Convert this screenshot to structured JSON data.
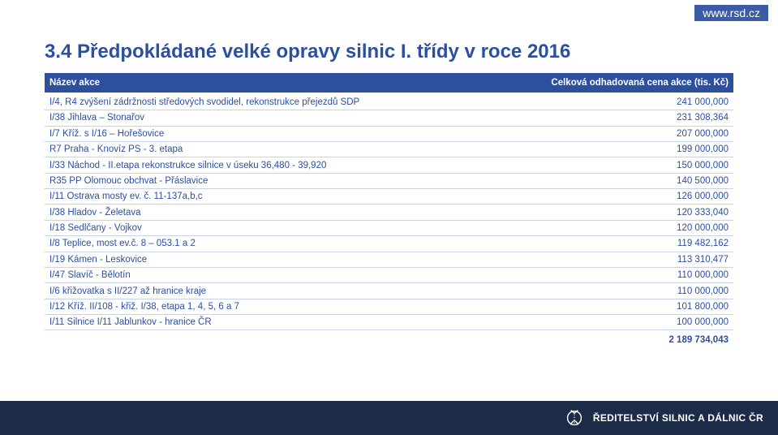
{
  "url": "www.rsd.cz",
  "title": "3.4 Předpokládané velké opravy silnic I. třídy v roce 2016",
  "table": {
    "header_name": "Název akce",
    "header_cost": "Celková odhadovaná cena akce (tis. Kč)",
    "rows": [
      {
        "name": "I/4, R4 zvýšení zádržnosti středových svodidel, rekonstrukce přejezdů SDP",
        "cost": "241 000,000"
      },
      {
        "name": "I/38 Jihlava – Stonařov",
        "cost": "231 308,364"
      },
      {
        "name": "I/7 Kříž. s I/16 – Hořešovice",
        "cost": "207 000,000"
      },
      {
        "name": "R7 Praha - Knovíz PS - 3. etapa",
        "cost": "199 000,000"
      },
      {
        "name": "I/33 Náchod - II.etapa rekonstrukce silnice v úseku 36,480 - 39,920",
        "cost": "150 000,000"
      },
      {
        "name": "R35 PP Olomouc obchvat - Přáslavice",
        "cost": "140 500,000"
      },
      {
        "name": "I/11 Ostrava mosty ev. č. 11-137a,b,c",
        "cost": "126 000,000"
      },
      {
        "name": "I/38 Hladov - Želetava",
        "cost": "120 333,040"
      },
      {
        "name": "I/18 Sedlčany - Vojkov",
        "cost": "120 000,000"
      },
      {
        "name": "I/8 Teplice, most ev.č. 8 – 053.1 a 2",
        "cost": "119 482,162"
      },
      {
        "name": "I/19 Kámen - Leskovice",
        "cost": "113 310,477"
      },
      {
        "name": "I/47 Slavíč - Bělotín",
        "cost": "110 000,000"
      },
      {
        "name": "I/6 křižovatka s II/227 až hranice kraje",
        "cost": "110 000,000"
      },
      {
        "name": "I/12 Kříž. II/108 - křiž. I/38, etapa 1, 4, 5, 6 a 7",
        "cost": "101 800,000"
      },
      {
        "name": "I/11 Silnice I/11 Jablunkov - hranice ČR",
        "cost": "100 000,000"
      }
    ],
    "total": "2 189 734,043"
  },
  "footer": {
    "org": "ŘEDITELSTVÍ SILNIC A DÁLNIC ČR"
  },
  "colors": {
    "brand_blue": "#2c4f9e",
    "header_bg": "#2c4f9e",
    "footer_bg": "#1c2b47",
    "row_border": "#c9d3e8",
    "url_bg": "#3b5ba5"
  }
}
